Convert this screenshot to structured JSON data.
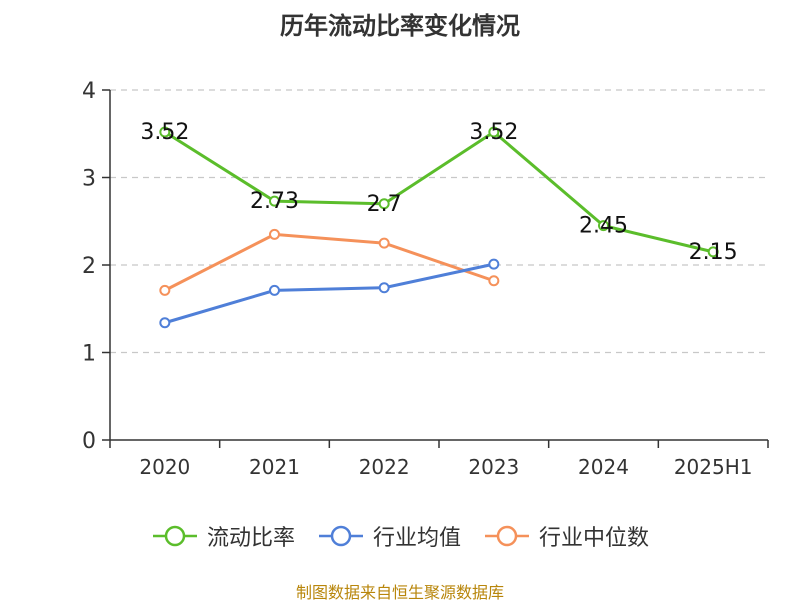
{
  "title": "历年流动比率变化情况",
  "source": "制图数据来自恒生聚源数据库",
  "chart_data": {
    "type": "line",
    "categories": [
      "2020",
      "2021",
      "2022",
      "2023",
      "2024",
      "2025H1"
    ],
    "ylim": [
      0,
      4
    ],
    "yticks": [
      0,
      1,
      2,
      3,
      4
    ],
    "grid": true,
    "legend_position": "bottom",
    "series": [
      {
        "name": "流动比率",
        "color": "#5bbd2b",
        "values": [
          3.52,
          2.73,
          2.7,
          3.52,
          2.45,
          2.15
        ],
        "labels": [
          "3.52",
          "2.73",
          "2.7",
          "3.52",
          "2.45",
          "2.15"
        ]
      },
      {
        "name": "行业均值",
        "color": "#4f7fd8",
        "values": [
          1.34,
          1.71,
          1.74,
          2.01,
          null,
          null
        ]
      },
      {
        "name": "行业中位数",
        "color": "#f5915a",
        "values": [
          1.71,
          2.35,
          2.25,
          1.82,
          null,
          null
        ]
      }
    ]
  }
}
